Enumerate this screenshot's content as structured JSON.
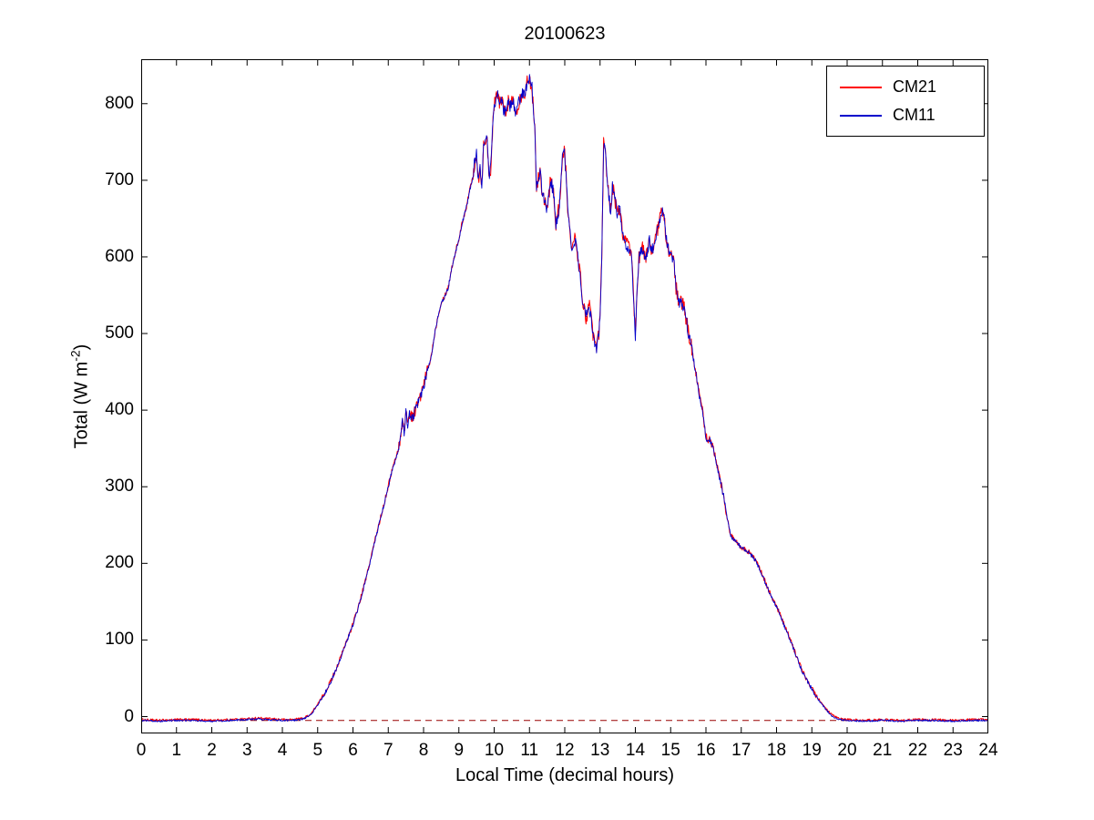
{
  "figure": {
    "title": "20100623",
    "background": "#ffffff"
  },
  "axes": {
    "xlabel": "Local Time (decimal hours)",
    "ylabel_main": "Total (W m",
    "ylabel_sup": "-2",
    "ylabel_end": ")"
  },
  "legend": {
    "entries": [
      {
        "label": "CM21",
        "color": "#ff0000"
      },
      {
        "label": "CM11",
        "color": "#0000cc"
      }
    ]
  },
  "chart_data": {
    "type": "line",
    "title": "20100623",
    "xlabel": "Local Time (decimal hours)",
    "ylabel": "Total (W m^-2)",
    "xlim": [
      0,
      24
    ],
    "ylim": [
      -22,
      858
    ],
    "x_ticks": [
      0,
      1,
      2,
      3,
      4,
      5,
      6,
      7,
      8,
      9,
      10,
      11,
      12,
      13,
      14,
      15,
      16,
      17,
      18,
      19,
      20,
      21,
      22,
      23,
      24
    ],
    "y_ticks": [
      0,
      100,
      200,
      300,
      400,
      500,
      600,
      700,
      800
    ],
    "zero_line": {
      "y": -5,
      "color": "#990000",
      "style": "dashed"
    },
    "series": [
      {
        "name": "CM21",
        "color": "#ff0000"
      },
      {
        "name": "CM11",
        "color": "#0000cc"
      }
    ],
    "points": [
      [
        0,
        -5
      ],
      [
        0.5,
        -6
      ],
      [
        1,
        -5
      ],
      [
        1.5,
        -5
      ],
      [
        2,
        -6
      ],
      [
        2.5,
        -5
      ],
      [
        3,
        -4
      ],
      [
        3.3,
        -3
      ],
      [
        3.6,
        -4
      ],
      [
        4,
        -5
      ],
      [
        4.3,
        -5
      ],
      [
        4.6,
        -3
      ],
      [
        4.8,
        2
      ],
      [
        5,
        15
      ],
      [
        5.2,
        30
      ],
      [
        5.4,
        48
      ],
      [
        5.6,
        70
      ],
      [
        5.8,
        95
      ],
      [
        6,
        120
      ],
      [
        6.2,
        150
      ],
      [
        6.4,
        185
      ],
      [
        6.6,
        225
      ],
      [
        6.8,
        262
      ],
      [
        7,
        300
      ],
      [
        7.1,
        320
      ],
      [
        7.2,
        335
      ],
      [
        7.3,
        350
      ],
      [
        7.4,
        385
      ],
      [
        7.45,
        370
      ],
      [
        7.5,
        400
      ],
      [
        7.55,
        380
      ],
      [
        7.6,
        395
      ],
      [
        7.7,
        390
      ],
      [
        7.8,
        405
      ],
      [
        7.9,
        415
      ],
      [
        8,
        430
      ],
      [
        8.1,
        450
      ],
      [
        8.2,
        465
      ],
      [
        8.3,
        495
      ],
      [
        8.4,
        520
      ],
      [
        8.5,
        540
      ],
      [
        8.6,
        548
      ],
      [
        8.7,
        560
      ],
      [
        8.8,
        585
      ],
      [
        8.9,
        605
      ],
      [
        9,
        622
      ],
      [
        9.1,
        645
      ],
      [
        9.2,
        662
      ],
      [
        9.3,
        685
      ],
      [
        9.4,
        705
      ],
      [
        9.45,
        725
      ],
      [
        9.5,
        735
      ],
      [
        9.55,
        700
      ],
      [
        9.6,
        715
      ],
      [
        9.65,
        695
      ],
      [
        9.7,
        745
      ],
      [
        9.75,
        755
      ],
      [
        9.8,
        750
      ],
      [
        9.85,
        705
      ],
      [
        9.9,
        715
      ],
      [
        9.95,
        760
      ],
      [
        10,
        795
      ],
      [
        10.05,
        805
      ],
      [
        10.1,
        810
      ],
      [
        10.15,
        800
      ],
      [
        10.2,
        806
      ],
      [
        10.25,
        795
      ],
      [
        10.3,
        788
      ],
      [
        10.35,
        795
      ],
      [
        10.4,
        802
      ],
      [
        10.45,
        795
      ],
      [
        10.5,
        806
      ],
      [
        10.55,
        800
      ],
      [
        10.6,
        790
      ],
      [
        10.65,
        795
      ],
      [
        10.7,
        802
      ],
      [
        10.75,
        808
      ],
      [
        10.8,
        815
      ],
      [
        10.85,
        812
      ],
      [
        10.9,
        820
      ],
      [
        10.95,
        828
      ],
      [
        11,
        835
      ],
      [
        11.03,
        820
      ],
      [
        11.06,
        830
      ],
      [
        11.1,
        800
      ],
      [
        11.15,
        762
      ],
      [
        11.2,
        690
      ],
      [
        11.25,
        705
      ],
      [
        11.3,
        710
      ],
      [
        11.35,
        690
      ],
      [
        11.4,
        680
      ],
      [
        11.45,
        670
      ],
      [
        11.5,
        660
      ],
      [
        11.55,
        680
      ],
      [
        11.6,
        700
      ],
      [
        11.65,
        690
      ],
      [
        11.7,
        678
      ],
      [
        11.75,
        640
      ],
      [
        11.8,
        655
      ],
      [
        11.85,
        665
      ],
      [
        11.9,
        705
      ],
      [
        11.95,
        740
      ],
      [
        12,
        730
      ],
      [
        12.05,
        700
      ],
      [
        12.1,
        650
      ],
      [
        12.15,
        630
      ],
      [
        12.2,
        605
      ],
      [
        12.25,
        615
      ],
      [
        12.3,
        625
      ],
      [
        12.35,
        605
      ],
      [
        12.4,
        590
      ],
      [
        12.45,
        570
      ],
      [
        12.5,
        545
      ],
      [
        12.55,
        530
      ],
      [
        12.6,
        520
      ],
      [
        12.65,
        528
      ],
      [
        12.7,
        535
      ],
      [
        12.75,
        515
      ],
      [
        12.8,
        500
      ],
      [
        12.85,
        488
      ],
      [
        12.9,
        478
      ],
      [
        12.95,
        495
      ],
      [
        13,
        515
      ],
      [
        13.05,
        600
      ],
      [
        13.1,
        745
      ],
      [
        13.15,
        735
      ],
      [
        13.2,
        705
      ],
      [
        13.25,
        680
      ],
      [
        13.3,
        660
      ],
      [
        13.35,
        692
      ],
      [
        13.4,
        685
      ],
      [
        13.45,
        665
      ],
      [
        13.5,
        650
      ],
      [
        13.55,
        668
      ],
      [
        13.6,
        645
      ],
      [
        13.65,
        630
      ],
      [
        13.7,
        622
      ],
      [
        13.75,
        615
      ],
      [
        13.8,
        612
      ],
      [
        13.85,
        605
      ],
      [
        13.9,
        598
      ],
      [
        13.95,
        545
      ],
      [
        14,
        495
      ],
      [
        14.05,
        555
      ],
      [
        14.1,
        598
      ],
      [
        14.15,
        608
      ],
      [
        14.2,
        612
      ],
      [
        14.25,
        600
      ],
      [
        14.3,
        598
      ],
      [
        14.35,
        610
      ],
      [
        14.4,
        622
      ],
      [
        14.45,
        612
      ],
      [
        14.5,
        608
      ],
      [
        14.55,
        618
      ],
      [
        14.6,
        628
      ],
      [
        14.65,
        640
      ],
      [
        14.7,
        650
      ],
      [
        14.75,
        658
      ],
      [
        14.8,
        655
      ],
      [
        14.85,
        635
      ],
      [
        14.9,
        618
      ],
      [
        14.95,
        608
      ],
      [
        15,
        600
      ],
      [
        15.05,
        595
      ],
      [
        15.1,
        588
      ],
      [
        15.15,
        560
      ],
      [
        15.2,
        545
      ],
      [
        15.25,
        542
      ],
      [
        15.3,
        540
      ],
      [
        15.35,
        535
      ],
      [
        15.4,
        528
      ],
      [
        15.5,
        502
      ],
      [
        15.6,
        480
      ],
      [
        15.7,
        452
      ],
      [
        15.8,
        422
      ],
      [
        15.9,
        400
      ],
      [
        15.95,
        380
      ],
      [
        16,
        365
      ],
      [
        16.05,
        360
      ],
      [
        16.1,
        362
      ],
      [
        16.2,
        350
      ],
      [
        16.3,
        330
      ],
      [
        16.4,
        308
      ],
      [
        16.5,
        288
      ],
      [
        16.6,
        258
      ],
      [
        16.7,
        236
      ],
      [
        16.8,
        230
      ],
      [
        16.9,
        226
      ],
      [
        17,
        220
      ],
      [
        17.1,
        218
      ],
      [
        17.2,
        214
      ],
      [
        17.3,
        210
      ],
      [
        17.4,
        204
      ],
      [
        17.5,
        194
      ],
      [
        17.6,
        184
      ],
      [
        17.7,
        172
      ],
      [
        17.8,
        162
      ],
      [
        17.9,
        152
      ],
      [
        18,
        143
      ],
      [
        18.1,
        132
      ],
      [
        18.2,
        120
      ],
      [
        18.3,
        110
      ],
      [
        18.4,
        98
      ],
      [
        18.5,
        86
      ],
      [
        18.6,
        74
      ],
      [
        18.7,
        62
      ],
      [
        18.8,
        52
      ],
      [
        18.9,
        44
      ],
      [
        19,
        36
      ],
      [
        19.1,
        28
      ],
      [
        19.2,
        21
      ],
      [
        19.3,
        15
      ],
      [
        19.4,
        9
      ],
      [
        19.5,
        4
      ],
      [
        19.6,
        0
      ],
      [
        19.7,
        -2
      ],
      [
        19.8,
        -4
      ],
      [
        20,
        -5
      ],
      [
        20.5,
        -6
      ],
      [
        21,
        -5
      ],
      [
        21.5,
        -6
      ],
      [
        22,
        -5
      ],
      [
        22.5,
        -5
      ],
      [
        23,
        -6
      ],
      [
        23.5,
        -5
      ],
      [
        24,
        -5
      ]
    ]
  }
}
